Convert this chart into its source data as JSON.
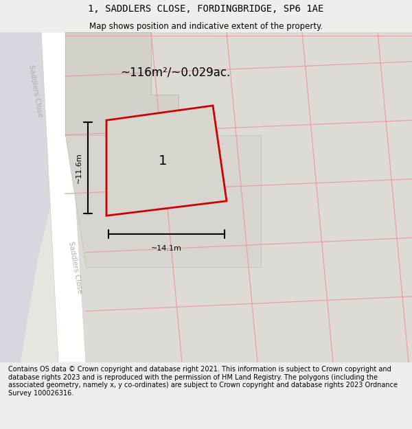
{
  "title": "1, SADDLERS CLOSE, FORDINGBRIDGE, SP6 1AE",
  "subtitle": "Map shows position and indicative extent of the property.",
  "area_text": "~116m²/~0.029ac.",
  "label_number": "1",
  "width_label": "~14.1m",
  "height_label": "~11.6m",
  "road_label_upper": "Saddlers Close",
  "road_label_lower": "Saddlers Close",
  "footer": "Contains OS data © Crown copyright and database right 2021. This information is subject to Crown copyright and database rights 2023 and is reproduced with the permission of HM Land Registry. The polygons (including the associated geometry, namely x, y co-ordinates) are subject to Crown copyright and database rights 2023 Ordnance Survey 100026316.",
  "bg_color": "#f0eeea",
  "map_bg": "#e8e5e0",
  "road_color": "#ffffff",
  "block_fill": "#dedad5",
  "block_edge": "#c8c4be",
  "red_outline": "#cc0000",
  "grid_line_color": "#e8a0a0",
  "title_fontsize": 10,
  "subtitle_fontsize": 8.5,
  "footer_fontsize": 7,
  "area_fontsize": 12,
  "label_fontsize": 14,
  "dim_fontsize": 8
}
